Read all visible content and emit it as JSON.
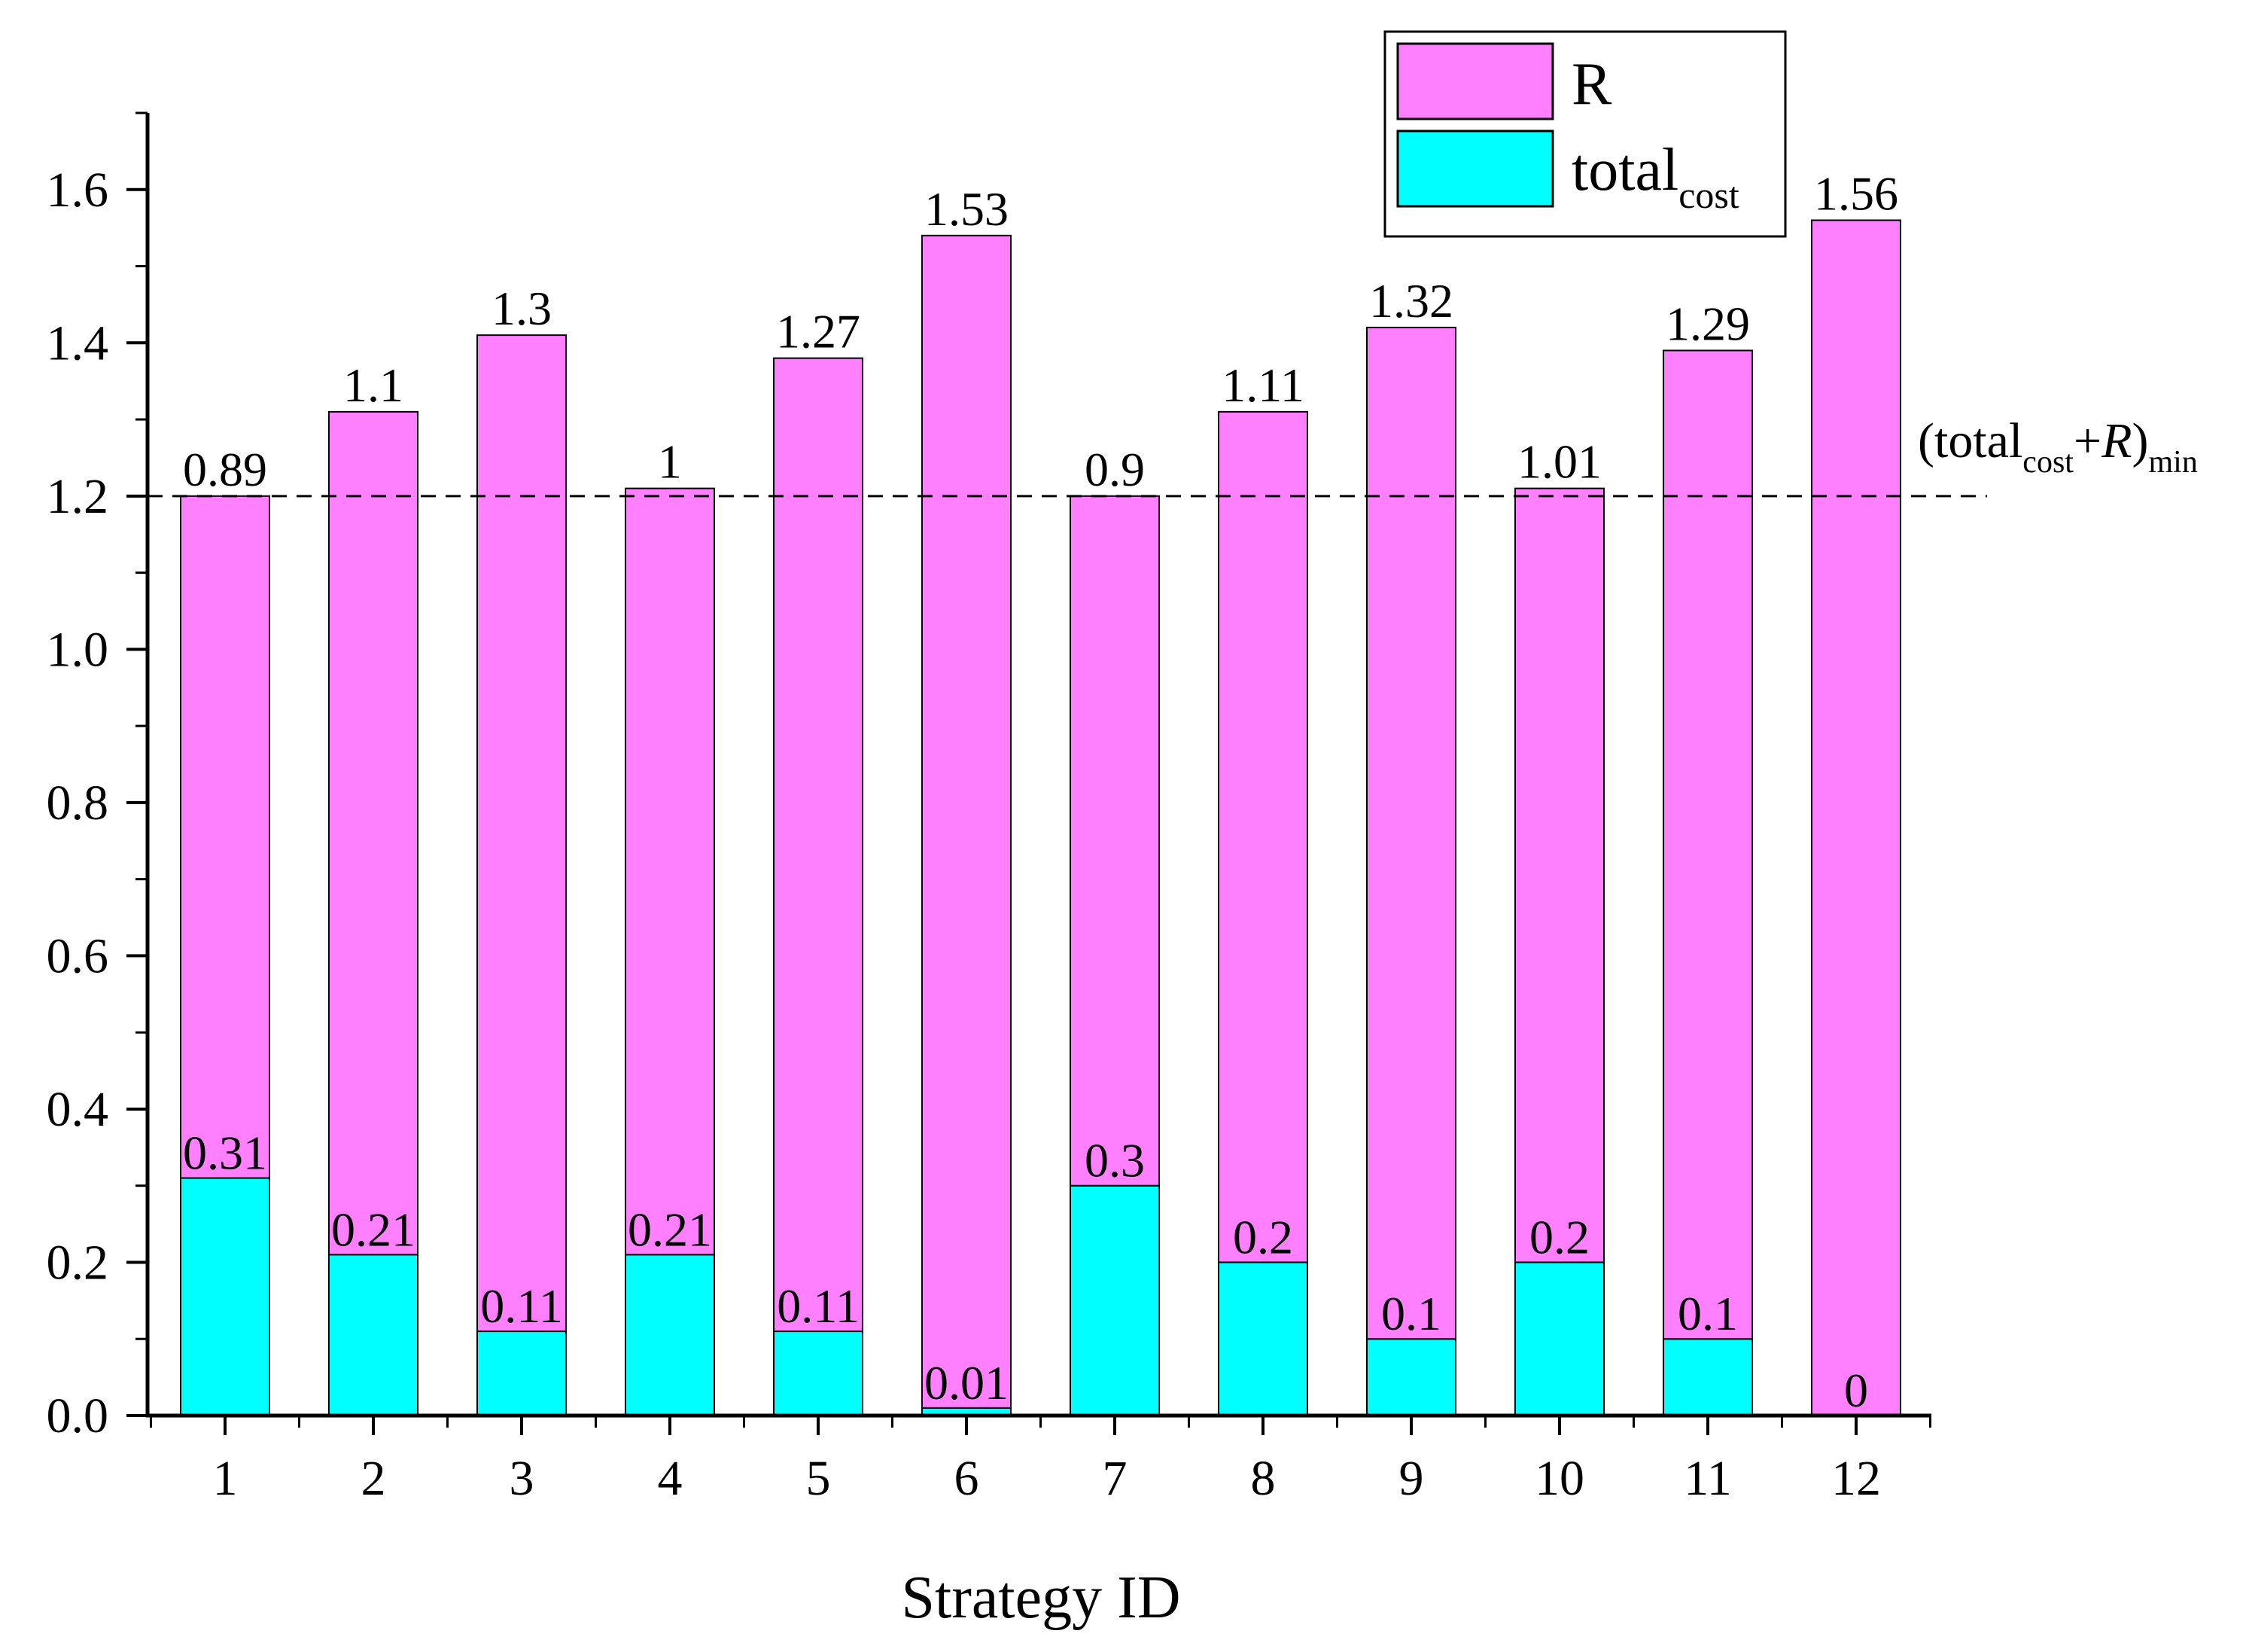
{
  "chart_data": {
    "type": "bar",
    "stacked": true,
    "title": "",
    "xlabel": "Strategy ID",
    "ylabel": "",
    "ylim": [
      0,
      1.7
    ],
    "yticks": [
      "0.0",
      "0.2",
      "0.4",
      "0.6",
      "0.8",
      "1.0",
      "1.2",
      "1.4",
      "1.6"
    ],
    "categories": [
      "1",
      "2",
      "3",
      "4",
      "5",
      "6",
      "7",
      "8",
      "9",
      "10",
      "11",
      "12"
    ],
    "series": [
      {
        "name": "total",
        "name_sub": "cost",
        "color": "#00FFFF",
        "values": [
          0.31,
          0.21,
          0.11,
          0.21,
          0.11,
          0.01,
          0.3,
          0.2,
          0.1,
          0.2,
          0.1,
          0
        ],
        "labels": [
          "0.31",
          "0.21",
          "0.11",
          "0.21",
          "0.11",
          "0.01",
          "0.3",
          "0.2",
          "0.1",
          "0.2",
          "0.1",
          "0"
        ]
      },
      {
        "name": "R",
        "color": "#FF80FF",
        "values": [
          0.89,
          1.1,
          1.3,
          1.0,
          1.27,
          1.53,
          0.9,
          1.11,
          1.32,
          1.01,
          1.29,
          1.56
        ],
        "labels": [
          "0.89",
          "1.1",
          "1.3",
          "1",
          "1.27",
          "1.53",
          "0.9",
          "1.11",
          "1.32",
          "1.01",
          "1.29",
          "1.56"
        ]
      }
    ],
    "reference_line": {
      "value": 1.2,
      "style": "dashed",
      "label": {
        "open": "(total",
        "sub1": "cost",
        "mid": "+",
        "italic": "R",
        "close": ")",
        "sub2": "min"
      }
    },
    "legend": {
      "position": "top-right",
      "entries": [
        {
          "series": 1,
          "label": "R"
        },
        {
          "series": 0,
          "label": "total",
          "label_sub": "cost"
        }
      ]
    }
  }
}
